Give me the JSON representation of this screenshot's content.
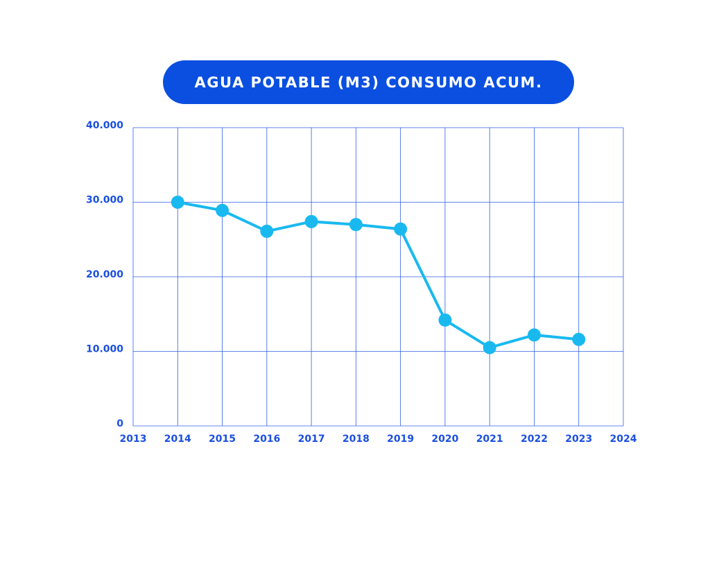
{
  "chart_data": {
    "type": "line",
    "title": "AGUA POTABLE (M3) CONSUMO ACUM.",
    "xlabel": "",
    "ylabel": "",
    "x_ticks": [
      "2013",
      "2014",
      "2015",
      "2016",
      "2017",
      "2018",
      "2019",
      "2020",
      "2021",
      "2022",
      "2023",
      "2024"
    ],
    "xlim": [
      2013,
      2024
    ],
    "y_ticks": [
      {
        "value": 0,
        "label": "0"
      },
      {
        "value": 10000,
        "label": "10.000"
      },
      {
        "value": 20000,
        "label": "20.000"
      },
      {
        "value": 30000,
        "label": "30.000"
      },
      {
        "value": 40000,
        "label": "40.000"
      }
    ],
    "ylim": [
      0,
      40000
    ],
    "grid": true,
    "legend": "none",
    "series": [
      {
        "x": [
          2014,
          2015,
          2016,
          2017,
          2018,
          2019,
          2020,
          2021,
          2022,
          2023
        ],
        "values": [
          30000,
          28900,
          26100,
          27400,
          27000,
          26400,
          14200,
          10500,
          12200,
          11600
        ]
      }
    ]
  },
  "colors": {
    "title_background": "#0a4fe0",
    "title_text": "#ffffff",
    "axis_labels": "#1a4fe0",
    "grid": "#2f5ee8",
    "line": "#19b9f0"
  }
}
